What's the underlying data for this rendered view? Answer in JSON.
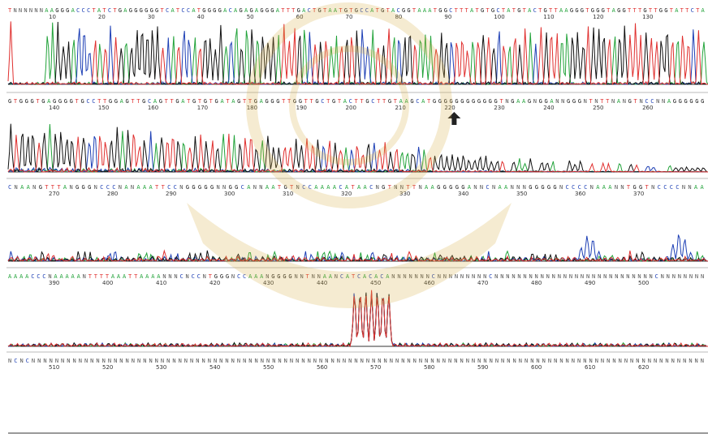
{
  "chart_data": {
    "type": "line",
    "title": "",
    "xlabel": "",
    "ylabel": "",
    "rows": [
      {
        "sequence": "TNNNNNNAAGGGACCCTATCTGAGGGGGGTCATCCATGGGGACAGAGAGGGATTTGACTGTAATGTGCCATGTACGGTAAATGGCTTTATGTGCTATGTACTGTTAAGGGTGGGTAGGTTTGTTGGTATTCTA",
        "positions": [
          10,
          20,
          30,
          40,
          50,
          60,
          70,
          80,
          90,
          100,
          110,
          120,
          130
        ],
        "signal": "strong"
      },
      {
        "sequence": "GTGGGTGAGGGGTGCCTTGGAGTTGCAGTTGATGTGTGATAGTTGAGGGTTGGTTGCTGTACTTGCTTGTAAGCATGGGGGGGGGGGGTNGAAGNGGANNGGGNTNTTNANGTNCCNNAGGGGGG",
        "positions": [
          140,
          150,
          160,
          170,
          180,
          190,
          200,
          210,
          220,
          230,
          240,
          250,
          260
        ],
        "signal": "decaying"
      },
      {
        "sequence": "CNAANGTTTANGGGNCCCNANAAATTCCNGGGGGNNGGCANNAATGTNCCAAAACATAACNGTNNTTNAAGGGGGANNCNAANNNGGGGGNCCCCNAAANNTGGTNCCCCNNAA",
        "positions": [
          270,
          280,
          290,
          300,
          310,
          320,
          330,
          340,
          350,
          360,
          370
        ],
        "signal": "noise"
      },
      {
        "sequence": "AAAACCCNAAAAANTTTTAAATTAAAANNNCNCCNTGGGNCCAAANGGGGNNTNNAANCATCACACANNNNNNNCNNNNNNNNNCNNNNNNNNNNNNNNNNNNNNNNNNNNNNCNNNNNNNN",
        "positions": [
          390,
          400,
          410,
          420,
          430,
          440,
          450,
          460,
          470,
          480,
          490,
          500
        ],
        "signal": "flat-with-spike"
      },
      {
        "sequence": "NCNCNNNNNNNNNNNNNNNNNNNNNNNNNNNNNNNNNNNNNNNNNNNNNNNNNNNNNNNNNNNNNNNNNNNNNNNNNNNNNNNNNNNNNNNNNNNNNNNNNNNNNNNNNNNNNNNNNNN",
        "positions": [
          510,
          520,
          530,
          540,
          550,
          560,
          570,
          580,
          590,
          600,
          610,
          620
        ],
        "signal": "none"
      }
    ],
    "colors": {
      "A": "#22a33a",
      "C": "#1d3fb5",
      "G": "#111111",
      "T": "#e0302f",
      "N": "#555555",
      "position_red": "#e0302f"
    },
    "marker": {
      "name": "arrow-up-icon",
      "row": 2,
      "position": 220
    }
  }
}
